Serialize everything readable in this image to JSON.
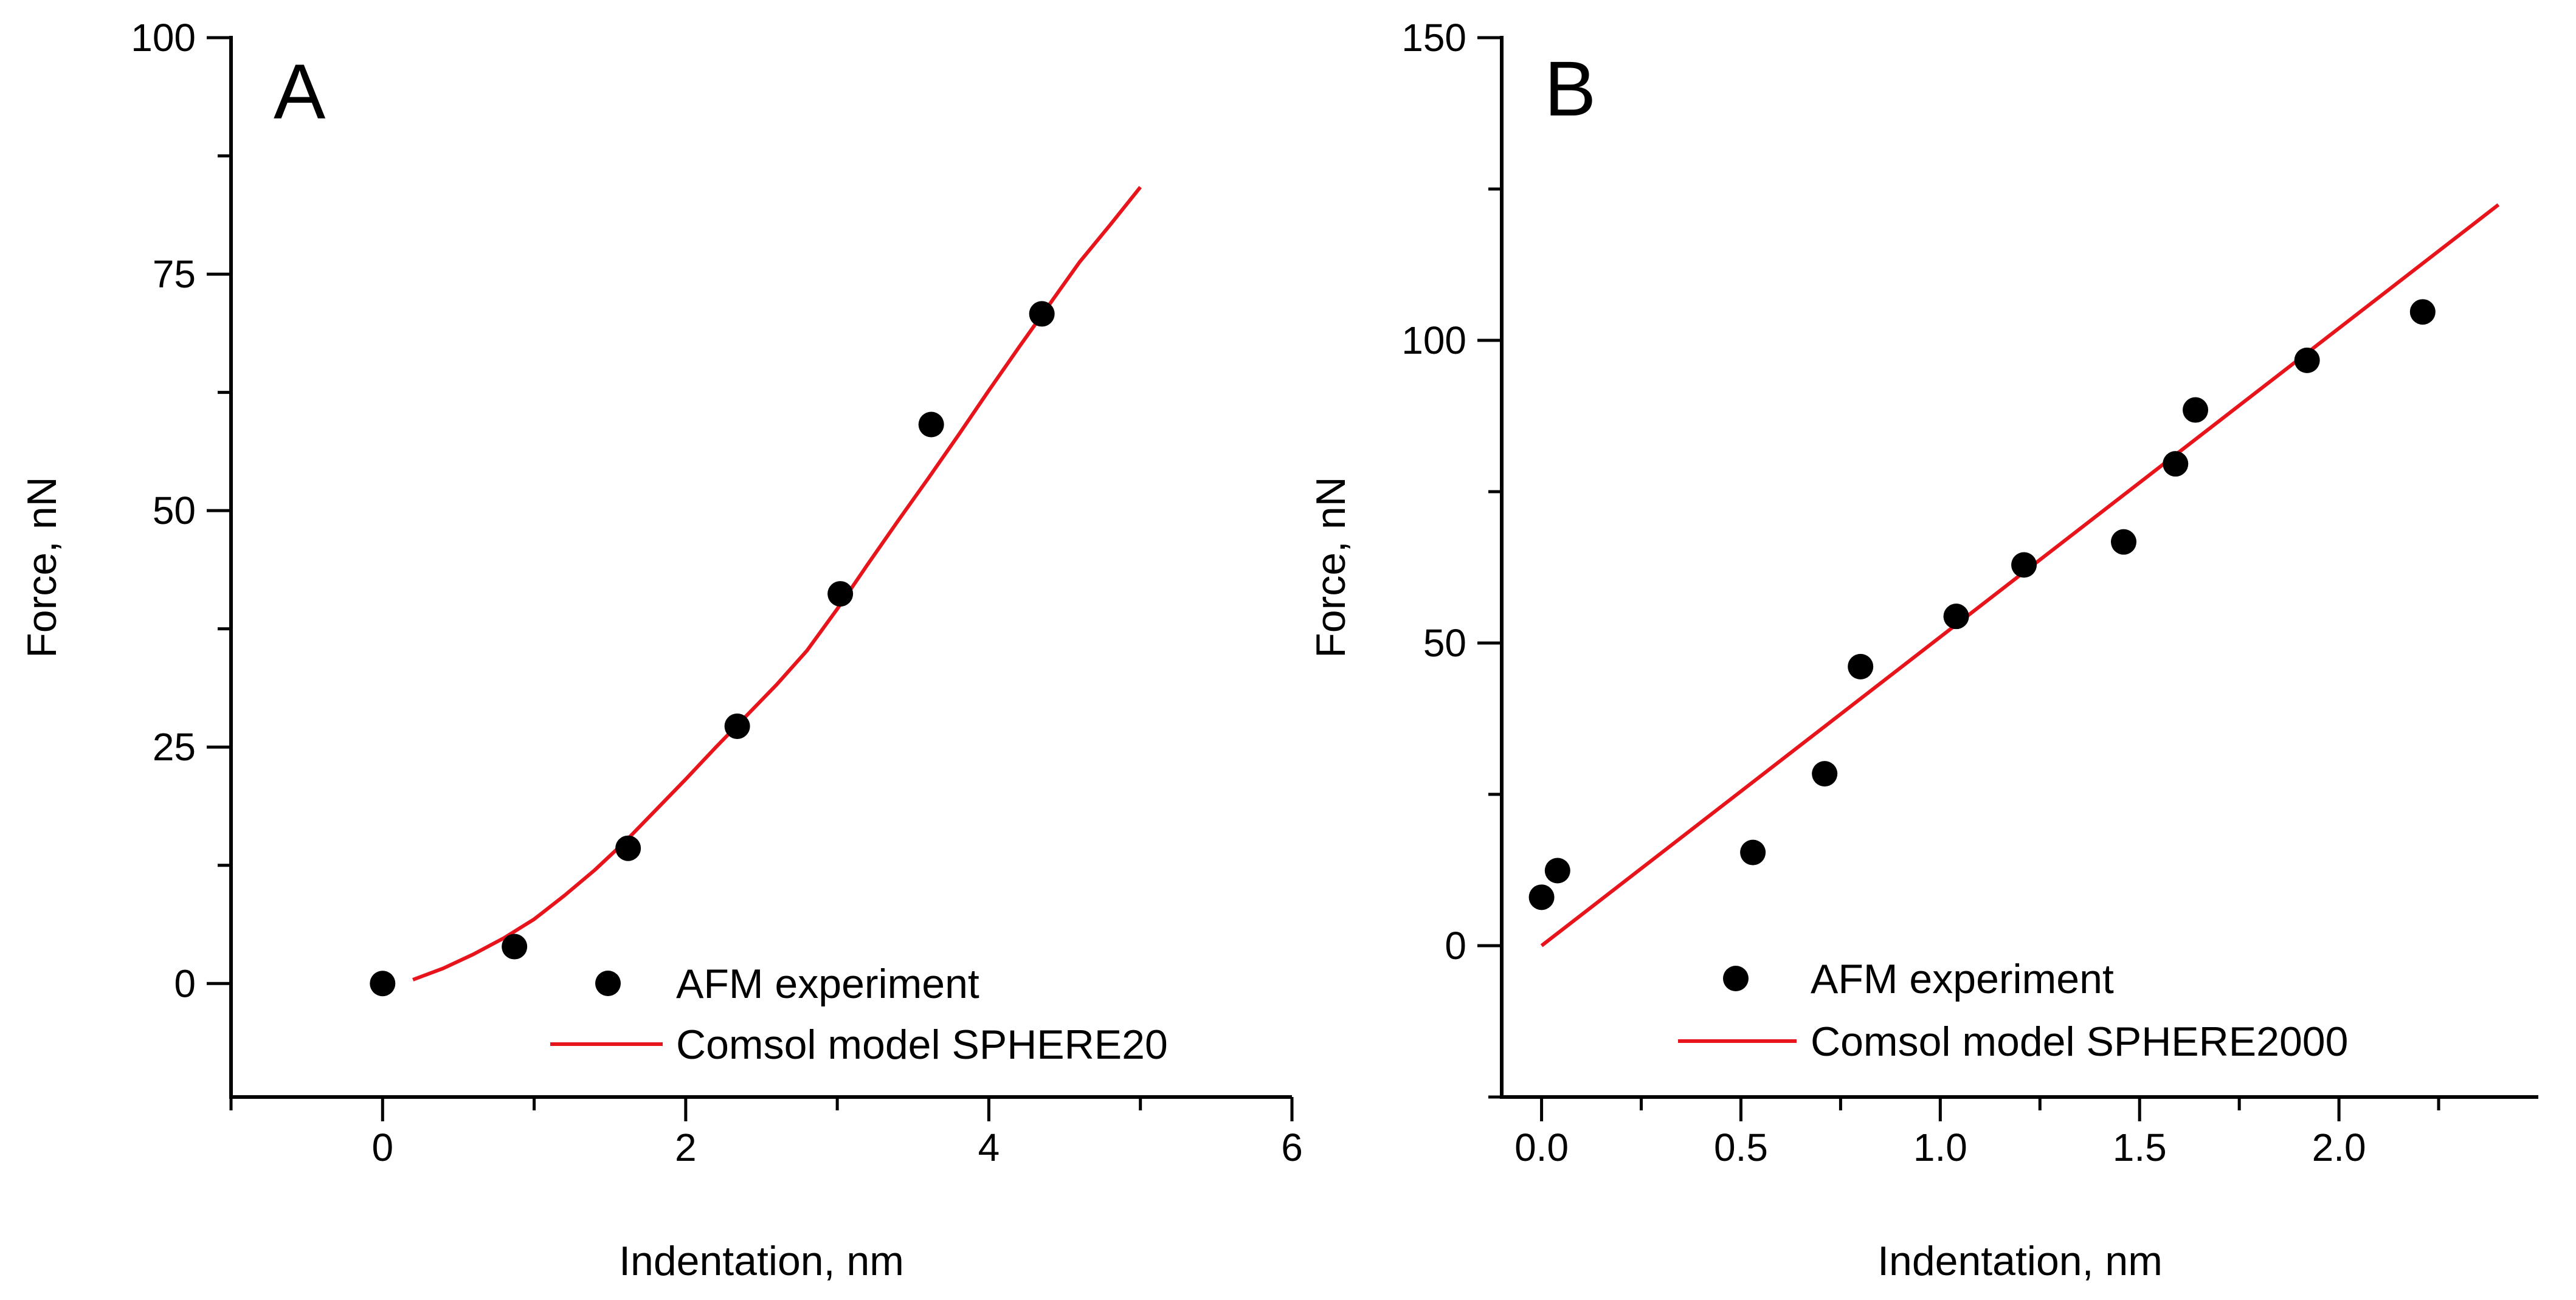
{
  "chart_data": [
    {
      "panel_label": "A",
      "type": "scatter",
      "xlabel": "Indentation, nm",
      "ylabel": "Force, nN",
      "xlim": [
        -1,
        6
      ],
      "ylim": [
        -12,
        100
      ],
      "x_major_ticks": [
        0,
        2,
        4,
        6
      ],
      "x_tick_labels": [
        "0",
        "2",
        "4",
        "6"
      ],
      "x_minor_ticks": [
        -1,
        1,
        3,
        5
      ],
      "y_major_ticks": [
        0,
        25,
        50,
        75,
        100
      ],
      "y_tick_labels": [
        "0",
        "25",
        "50",
        "75",
        "100"
      ],
      "y_minor_ticks": [
        12.5,
        37.5,
        62.5,
        87.5
      ],
      "legend_position": "bottom-right",
      "grid": false,
      "series": [
        {
          "name": "AFM experiment",
          "kind": "scatter",
          "color": "#000000",
          "points": [
            [
              0,
              0
            ],
            [
              0.87,
              3.9
            ],
            [
              1.62,
              14.3
            ],
            [
              2.34,
              27.2
            ],
            [
              3.02,
              41.2
            ],
            [
              3.62,
              59.1
            ],
            [
              4.35,
              70.8
            ]
          ]
        },
        {
          "name": "Comsol model SPHERE20",
          "kind": "line",
          "color": "#e8141c",
          "points": [
            [
              0.2,
              0.4
            ],
            [
              0.4,
              1.6
            ],
            [
              0.6,
              3.1
            ],
            [
              0.8,
              4.8
            ],
            [
              1.0,
              6.8
            ],
            [
              1.2,
              9.3
            ],
            [
              1.4,
              12.0
            ],
            [
              1.6,
              15.0
            ],
            [
              1.8,
              18.3
            ],
            [
              2.0,
              21.6
            ],
            [
              2.2,
              25.0
            ],
            [
              2.4,
              28.3
            ],
            [
              2.6,
              31.6
            ],
            [
              2.8,
              35.2
            ],
            [
              3.0,
              39.6
            ],
            [
              3.2,
              44.3
            ],
            [
              3.4,
              48.9
            ],
            [
              3.6,
              53.4
            ],
            [
              3.8,
              58.0
            ],
            [
              4.0,
              62.7
            ],
            [
              4.2,
              67.3
            ],
            [
              4.4,
              71.8
            ],
            [
              4.6,
              76.3
            ],
            [
              4.8,
              80.2
            ],
            [
              5.0,
              84.2
            ]
          ]
        }
      ]
    },
    {
      "panel_label": "B",
      "type": "scatter",
      "xlabel": "Indentation, nm",
      "ylabel": "Force, nN",
      "xlim": [
        -0.1,
        2.5
      ],
      "ylim": [
        -25,
        150
      ],
      "x_major_ticks": [
        0.0,
        0.5,
        1.0,
        1.5,
        2.0
      ],
      "x_tick_labels": [
        "0.0",
        "0.5",
        "1.0",
        "1.5",
        "2.0"
      ],
      "x_minor_ticks": [
        0.25,
        0.75,
        1.25,
        1.75,
        2.25
      ],
      "y_major_ticks": [
        0,
        50,
        100,
        150
      ],
      "y_tick_labels": [
        "0",
        "50",
        "100",
        "150"
      ],
      "y_minor_ticks": [
        -25,
        25,
        75,
        125
      ],
      "legend_position": "bottom-right",
      "grid": false,
      "series": [
        {
          "name": "AFM experiment",
          "kind": "scatter",
          "color": "#000000",
          "points": [
            [
              0.0,
              8.0
            ],
            [
              0.04,
              12.4
            ],
            [
              0.53,
              15.4
            ],
            [
              0.71,
              28.4
            ],
            [
              0.8,
              46.1
            ],
            [
              1.04,
              54.4
            ],
            [
              1.21,
              62.9
            ],
            [
              1.46,
              66.7
            ],
            [
              1.59,
              79.6
            ],
            [
              1.64,
              88.5
            ],
            [
              1.92,
              96.7
            ],
            [
              2.21,
              104.7
            ]
          ]
        },
        {
          "name": "Comsol model SPHERE2000",
          "kind": "line",
          "color": "#e8141c",
          "points": [
            [
              0.0,
              0.0
            ],
            [
              2.4,
              122.4
            ]
          ]
        }
      ]
    }
  ]
}
